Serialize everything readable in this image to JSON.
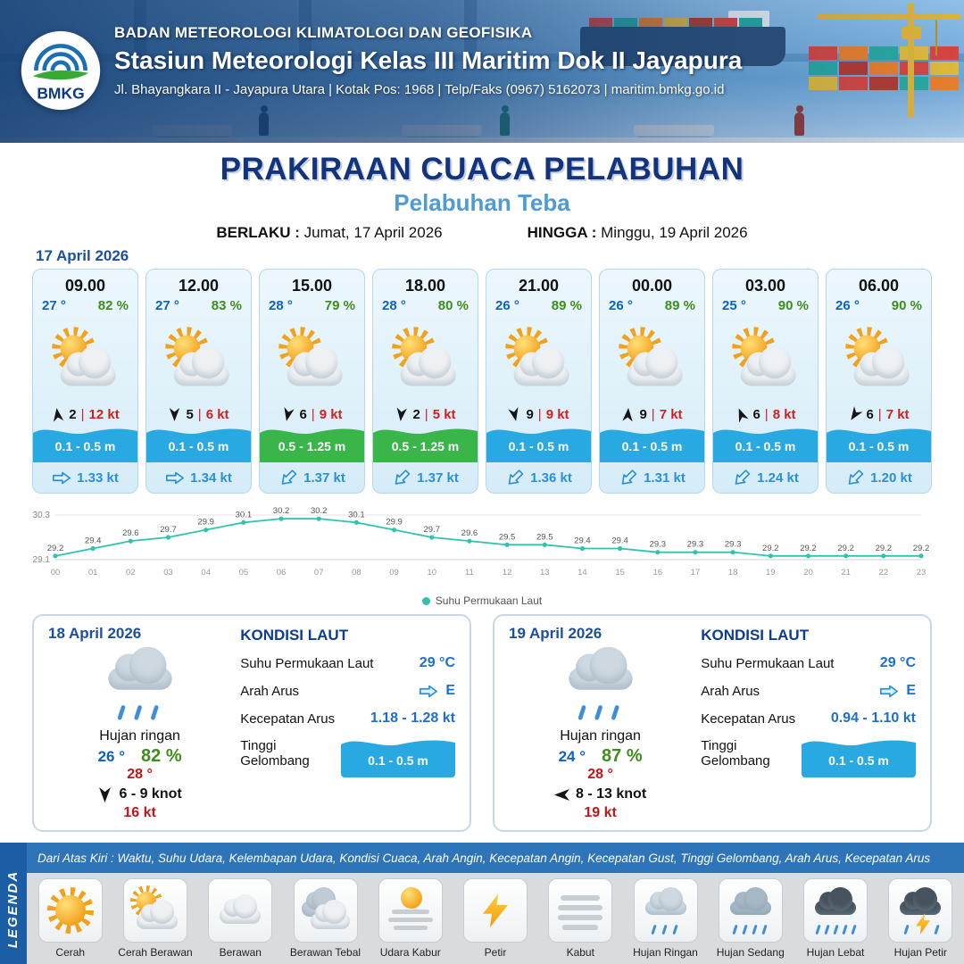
{
  "header": {
    "agency": "BADAN METEOROLOGI KLIMATOLOGI DAN GEOFISIKA",
    "station": "Stasiun Meteorologi Kelas III Maritim Dok II Jayapura",
    "address": "Jl. Bhayangkara II - Jayapura Utara | Kotak Pos: 1968 | Telp/Faks (0967) 5162073 | maritim.bmkg.go.id",
    "logo_text": "BMKG"
  },
  "title": {
    "main": "PRAKIRAAN CUACA PELABUHAN",
    "sub": "Pelabuhan Teba",
    "valid_label": "BERLAKU :",
    "valid_value": "Jumat, 17 April 2026",
    "until_label": "HINGGA :",
    "until_value": "Minggu, 19 April 2026"
  },
  "forecast_date": "17 April 2026",
  "hourly": [
    {
      "time": "09.00",
      "temp": "27 °",
      "rh": "82 %",
      "icon": "cerah-berawan",
      "wind_dir_deg": 352,
      "wind_speed": "2",
      "gust": "12 kt",
      "wave_height": "0.1 - 0.5 m",
      "wave_color": "#29a9e1",
      "current_dir_deg": 0,
      "current_speed": "1.33 kt"
    },
    {
      "time": "12.00",
      "temp": "27 °",
      "rh": "83 %",
      "icon": "cerah-berawan",
      "wind_dir_deg": 180,
      "wind_speed": "5",
      "gust": "6 kt",
      "wave_height": "0.1 - 0.5 m",
      "wave_color": "#29a9e1",
      "current_dir_deg": 0,
      "current_speed": "1.34 kt"
    },
    {
      "time": "15.00",
      "temp": "28 °",
      "rh": "79 %",
      "icon": "cerah-berawan",
      "wind_dir_deg": 192,
      "wind_speed": "6",
      "gust": "9 kt",
      "wave_height": "0.5 - 1.25 m",
      "wave_color": "#39b54a",
      "current_dir_deg": 135,
      "current_speed": "1.37 kt"
    },
    {
      "time": "18.00",
      "temp": "28 °",
      "rh": "80 %",
      "icon": "cerah-berawan",
      "wind_dir_deg": 186,
      "wind_speed": "2",
      "gust": "5 kt",
      "wave_height": "0.5 - 1.25 m",
      "wave_color": "#39b54a",
      "current_dir_deg": 135,
      "current_speed": "1.37 kt"
    },
    {
      "time": "21.00",
      "temp": "26 °",
      "rh": "89 %",
      "icon": "cerah-berawan",
      "wind_dir_deg": 168,
      "wind_speed": "9",
      "gust": "9 kt",
      "wave_height": "0.1 - 0.5 m",
      "wave_color": "#29a9e1",
      "current_dir_deg": 135,
      "current_speed": "1.36 kt"
    },
    {
      "time": "00.00",
      "temp": "26 °",
      "rh": "89 %",
      "icon": "cerah-berawan",
      "wind_dir_deg": 4,
      "wind_speed": "9",
      "gust": "7 kt",
      "wave_height": "0.1 - 0.5 m",
      "wave_color": "#29a9e1",
      "current_dir_deg": 135,
      "current_speed": "1.31 kt"
    },
    {
      "time": "03.00",
      "temp": "25 °",
      "rh": "90 %",
      "icon": "cerah-berawan",
      "wind_dir_deg": 338,
      "wind_speed": "6",
      "gust": "8 kt",
      "wave_height": "0.1 - 0.5 m",
      "wave_color": "#29a9e1",
      "current_dir_deg": 135,
      "current_speed": "1.24 kt"
    },
    {
      "time": "06.00",
      "temp": "26 °",
      "rh": "90 %",
      "icon": "cerah-berawan",
      "wind_dir_deg": 214,
      "wind_speed": "6",
      "gust": "7 kt",
      "wave_height": "0.1 - 0.5 m",
      "wave_color": "#29a9e1",
      "current_dir_deg": 135,
      "current_speed": "1.20 kt"
    }
  ],
  "chart_data": {
    "type": "line",
    "series_name": "Suhu Permukaan Laut",
    "x": [
      "00",
      "01",
      "02",
      "03",
      "04",
      "05",
      "06",
      "07",
      "08",
      "09",
      "10",
      "11",
      "12",
      "13",
      "14",
      "15",
      "16",
      "17",
      "18",
      "19",
      "20",
      "21",
      "22",
      "23"
    ],
    "values": [
      29.2,
      29.4,
      29.6,
      29.7,
      29.9,
      30.1,
      30.2,
      30.2,
      30.1,
      29.9,
      29.7,
      29.6,
      29.5,
      29.5,
      29.4,
      29.4,
      29.3,
      29.3,
      29.3,
      29.2,
      29.2,
      29.2,
      29.2,
      29.2
    ],
    "ylim": [
      29.1,
      30.3
    ],
    "line_color": "#2fc2ae",
    "legend_position": "bottom",
    "grid": true
  },
  "daily": [
    {
      "date": "18 April 2026",
      "icon": "hujan-ringan",
      "condition": "Hujan ringan",
      "temp_min": "26 °",
      "humidity": "82 %",
      "temp_max": "28 °",
      "wind_dir_deg": 180,
      "wind_range": "6 - 9 knot",
      "gust": "16 kt",
      "sea": {
        "title": "KONDISI LAUT",
        "sst_label": "Suhu Permukaan Laut",
        "sst_value": "29 °C",
        "current_dir_label": "Arah Arus",
        "current_dir_value": "E",
        "current_dir_deg": 0,
        "current_speed_label": "Kecepatan Arus",
        "current_speed_value": "1.18 - 1.28 kt",
        "wave_label": "Tinggi Gelombang",
        "wave_value": "0.1 - 0.5 m"
      }
    },
    {
      "date": "19 April 2026",
      "icon": "hujan-ringan",
      "condition": "Hujan ringan",
      "temp_min": "24 °",
      "humidity": "87 %",
      "temp_max": "28 °",
      "wind_dir_deg": 270,
      "wind_range": "8 - 13 knot",
      "gust": "19 kt",
      "sea": {
        "title": "KONDISI LAUT",
        "sst_label": "Suhu Permukaan Laut",
        "sst_value": "29 °C",
        "current_dir_label": "Arah Arus",
        "current_dir_value": "E",
        "current_dir_deg": 0,
        "current_speed_label": "Kecepatan Arus",
        "current_speed_value": "0.94 - 1.10 kt",
        "wave_label": "Tinggi Gelombang",
        "wave_value": "0.1 - 0.5 m"
      }
    }
  ],
  "legend": {
    "sidebar": "LEGENDA",
    "description": "Dari Atas Kiri : Waktu, Suhu Udara, Kelembapan Udara, Kondisi Cuaca, Arah Angin, Kecepatan Angin, Kecepatan Gust, Tinggi Gelombang, Arah Arus, Kecepatan Arus",
    "items": [
      {
        "label": "Cerah",
        "icon": "cerah"
      },
      {
        "label": "Cerah Berawan",
        "icon": "cerah-berawan"
      },
      {
        "label": "Berawan",
        "icon": "berawan"
      },
      {
        "label": "Berawan Tebal",
        "icon": "berawan-tebal"
      },
      {
        "label": "Udara Kabur",
        "icon": "udara-kabur"
      },
      {
        "label": "Petir",
        "icon": "petir"
      },
      {
        "label": "Kabut",
        "icon": "kabut"
      },
      {
        "label": "Hujan Ringan",
        "icon": "hujan-ringan"
      },
      {
        "label": "Hujan Sedang",
        "icon": "hujan-sedang"
      },
      {
        "label": "Hujan Lebat",
        "icon": "hujan-lebat"
      },
      {
        "label": "Hujan Petir",
        "icon": "hujan-petir"
      }
    ]
  },
  "colors": {
    "accent_blue": "#1b5ea6",
    "wave_blue": "#29a9e1",
    "wave_green": "#39b54a",
    "temp_blue": "#0b62c4",
    "humidity_green": "#3f8d1d",
    "gust_red": "#d21f1f",
    "sst_line_teal": "#2fc2ae"
  }
}
